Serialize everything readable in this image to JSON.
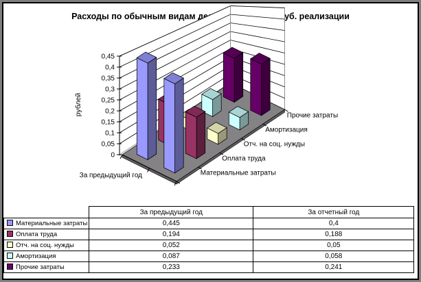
{
  "window": {
    "frame_color": "#808080",
    "background": "#ffffff"
  },
  "chart": {
    "title": "Расходы по обычным видам деятельности на 1 руб. реализации",
    "value_axis_title": "рублей",
    "value_tick_labels": [
      "0",
      "0,05",
      "0,1",
      "0,15",
      "0,2",
      "0,25",
      "0,3",
      "0,35",
      "0,4",
      "0,45"
    ],
    "category_axis_label": "За предыдущий год"
  },
  "chart_data": {
    "type": "bar",
    "subtype": "3d-column-perspective",
    "title": "Расходы по обычным видам деятельности на 1 руб. реализации",
    "categories": [
      "За предыдущий год",
      "За отчетный год"
    ],
    "series": [
      {
        "name": "Материальные затраты",
        "color": "#9999FF",
        "values": [
          0.445,
          0.4
        ]
      },
      {
        "name": "Оплата труда",
        "color": "#993366",
        "values": [
          0.194,
          0.188
        ]
      },
      {
        "name": "Отч. на соц. нужды",
        "color": "#FFFFCC",
        "values": [
          0.052,
          0.05
        ]
      },
      {
        "name": "Амортизация",
        "color": "#CCFFFF",
        "values": [
          0.087,
          0.058
        ]
      },
      {
        "name": "Прочие затраты",
        "color": "#660066",
        "values": [
          0.233,
          0.241
        ]
      }
    ],
    "ylabel": "рублей",
    "ylim": [
      0,
      0.45
    ],
    "tick_step": 0.05,
    "grid": true,
    "floor_color": "#848284",
    "wall_color": "#ffffff",
    "number_format": "comma-decimal",
    "legend_position": "table-left-column"
  },
  "table": {
    "corner_label": "",
    "col_headers": [
      "За предыдущий год",
      "За отчетный год"
    ],
    "rows": [
      {
        "label": "Материальные затраты",
        "swatch_color": "#9999FF",
        "values": [
          "0,445",
          "0,4"
        ]
      },
      {
        "label": "Оплата труда",
        "swatch_color": "#993366",
        "values": [
          "0,194",
          "0,188"
        ]
      },
      {
        "label": "Отч. на соц. нужды",
        "swatch_color": "#FFFFCC",
        "values": [
          "0,052",
          "0,05"
        ]
      },
      {
        "label": "Амортизация",
        "swatch_color": "#CCFFFF",
        "values": [
          "0,087",
          "0,058"
        ]
      },
      {
        "label": "Прочие затраты",
        "swatch_color": "#660066",
        "values": [
          "0,233",
          "0,241"
        ]
      }
    ]
  }
}
